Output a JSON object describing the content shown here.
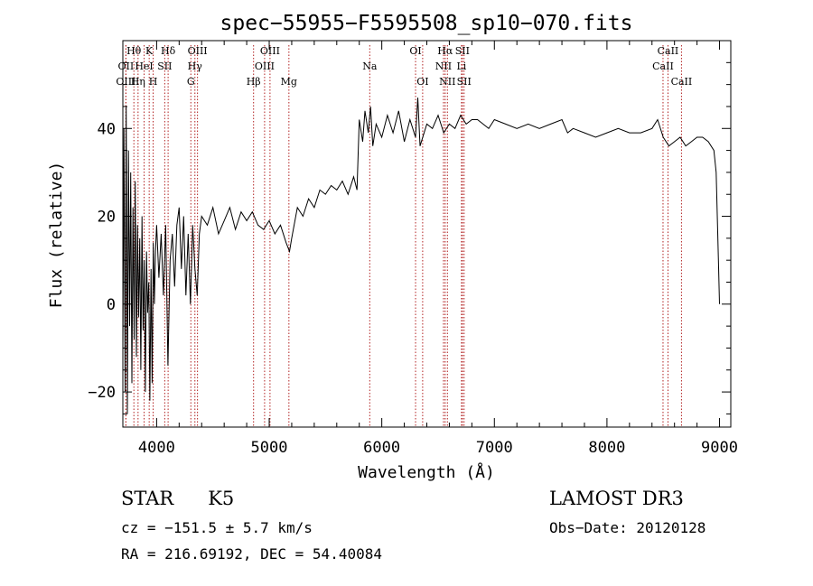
{
  "chart_data": {
    "type": "line",
    "title": "spec−55955−F5595508_sp10−070.fits",
    "xlabel": "Wavelength (Å)",
    "ylabel": "Flux (relative)",
    "xlim": [
      3700,
      9100
    ],
    "ylim": [
      -28,
      60
    ],
    "xticks": [
      4000,
      5000,
      6000,
      7000,
      8000,
      9000
    ],
    "yticks": [
      -20,
      0,
      20,
      40
    ],
    "ytick_labels": [
      "−20",
      "0",
      "20",
      "40"
    ],
    "series": [
      {
        "name": "flux",
        "points": [
          [
            3700,
            -10
          ],
          [
            3710,
            40
          ],
          [
            3720,
            -20
          ],
          [
            3730,
            45
          ],
          [
            3740,
            -25
          ],
          [
            3750,
            35
          ],
          [
            3760,
            -5
          ],
          [
            3770,
            30
          ],
          [
            3780,
            -18
          ],
          [
            3790,
            22
          ],
          [
            3800,
            -8
          ],
          [
            3810,
            28
          ],
          [
            3820,
            -12
          ],
          [
            3830,
            18
          ],
          [
            3840,
            -3
          ],
          [
            3850,
            15
          ],
          [
            3860,
            -15
          ],
          [
            3870,
            20
          ],
          [
            3880,
            -6
          ],
          [
            3890,
            10
          ],
          [
            3900,
            -20
          ],
          [
            3910,
            12
          ],
          [
            3920,
            -2
          ],
          [
            3930,
            5
          ],
          [
            3940,
            -22
          ],
          [
            3950,
            8
          ],
          [
            3960,
            -18
          ],
          [
            3970,
            14
          ],
          [
            3980,
            0
          ],
          [
            3990,
            12
          ],
          [
            4000,
            18
          ],
          [
            4020,
            6
          ],
          [
            4040,
            16
          ],
          [
            4060,
            2
          ],
          [
            4080,
            18
          ],
          [
            4100,
            -14
          ],
          [
            4120,
            10
          ],
          [
            4140,
            16
          ],
          [
            4160,
            4
          ],
          [
            4180,
            18
          ],
          [
            4200,
            22
          ],
          [
            4220,
            8
          ],
          [
            4240,
            20
          ],
          [
            4260,
            2
          ],
          [
            4280,
            16
          ],
          [
            4300,
            0
          ],
          [
            4320,
            18
          ],
          [
            4340,
            8
          ],
          [
            4360,
            2
          ],
          [
            4380,
            16
          ],
          [
            4400,
            20
          ],
          [
            4450,
            18
          ],
          [
            4500,
            22
          ],
          [
            4550,
            16
          ],
          [
            4600,
            19
          ],
          [
            4650,
            22
          ],
          [
            4700,
            17
          ],
          [
            4750,
            21
          ],
          [
            4800,
            19
          ],
          [
            4850,
            21
          ],
          [
            4900,
            18
          ],
          [
            4950,
            17
          ],
          [
            5000,
            19
          ],
          [
            5050,
            16
          ],
          [
            5100,
            18
          ],
          [
            5150,
            14
          ],
          [
            5180,
            12
          ],
          [
            5200,
            15
          ],
          [
            5250,
            22
          ],
          [
            5300,
            20
          ],
          [
            5350,
            24
          ],
          [
            5400,
            22
          ],
          [
            5450,
            26
          ],
          [
            5500,
            25
          ],
          [
            5550,
            27
          ],
          [
            5600,
            26
          ],
          [
            5650,
            28
          ],
          [
            5700,
            25
          ],
          [
            5750,
            29
          ],
          [
            5780,
            26
          ],
          [
            5800,
            42
          ],
          [
            5830,
            37
          ],
          [
            5850,
            44
          ],
          [
            5880,
            39
          ],
          [
            5900,
            45
          ],
          [
            5920,
            36
          ],
          [
            5950,
            41
          ],
          [
            6000,
            38
          ],
          [
            6050,
            43
          ],
          [
            6100,
            39
          ],
          [
            6150,
            44
          ],
          [
            6200,
            37
          ],
          [
            6250,
            42
          ],
          [
            6300,
            38
          ],
          [
            6320,
            47
          ],
          [
            6340,
            36
          ],
          [
            6400,
            41
          ],
          [
            6450,
            40
          ],
          [
            6500,
            43
          ],
          [
            6550,
            39
          ],
          [
            6600,
            41
          ],
          [
            6650,
            40
          ],
          [
            6700,
            43
          ],
          [
            6750,
            41
          ],
          [
            6800,
            42
          ],
          [
            6850,
            42
          ],
          [
            6900,
            41
          ],
          [
            6950,
            40
          ],
          [
            7000,
            42
          ],
          [
            7100,
            41
          ],
          [
            7200,
            40
          ],
          [
            7300,
            41
          ],
          [
            7400,
            40
          ],
          [
            7500,
            41
          ],
          [
            7600,
            42
          ],
          [
            7650,
            39
          ],
          [
            7700,
            40
          ],
          [
            7800,
            39
          ],
          [
            7900,
            38
          ],
          [
            8000,
            39
          ],
          [
            8100,
            40
          ],
          [
            8200,
            39
          ],
          [
            8300,
            39
          ],
          [
            8400,
            40
          ],
          [
            8450,
            42
          ],
          [
            8500,
            38
          ],
          [
            8550,
            36
          ],
          [
            8600,
            37
          ],
          [
            8650,
            38
          ],
          [
            8700,
            36
          ],
          [
            8750,
            37
          ],
          [
            8800,
            38
          ],
          [
            8850,
            38
          ],
          [
            8900,
            37
          ],
          [
            8950,
            35
          ],
          [
            8970,
            30
          ],
          [
            8990,
            10
          ],
          [
            9000,
            0
          ]
        ]
      }
    ],
    "lines": [
      {
        "label": "Hθ",
        "x": 3798,
        "row": 1
      },
      {
        "label": "OII",
        "x": 3727,
        "row": 2
      },
      {
        "label": "OIII",
        "x": 3727,
        "row": 3
      },
      {
        "label": "K",
        "x": 3934,
        "row": 1
      },
      {
        "label": "HeI",
        "x": 3889,
        "row": 2
      },
      {
        "label": "Hη",
        "x": 3835,
        "row": 3
      },
      {
        "label": "Hδ",
        "x": 4102,
        "row": 1
      },
      {
        "label": "SII",
        "x": 4072,
        "row": 2
      },
      {
        "label": "H",
        "x": 3969,
        "row": 3
      },
      {
        "label": "OIII",
        "x": 4363,
        "row": 1
      },
      {
        "label": "Hγ",
        "x": 4340,
        "row": 2
      },
      {
        "label": "G",
        "x": 4304,
        "row": 3
      },
      {
        "label": "OIII",
        "x": 5007,
        "row": 1
      },
      {
        "label": "OIII",
        "x": 4959,
        "row": 2
      },
      {
        "label": "Hβ",
        "x": 4861,
        "row": 3
      },
      {
        "label": "Mg",
        "x": 5175,
        "row": 3
      },
      {
        "label": "Na",
        "x": 5893,
        "row": 2
      },
      {
        "label": "OI",
        "x": 6300,
        "row": 1
      },
      {
        "label": "OI",
        "x": 6363,
        "row": 3
      },
      {
        "label": "Hα",
        "x": 6563,
        "row": 1
      },
      {
        "label": "SII",
        "x": 6716,
        "row": 1
      },
      {
        "label": "NII",
        "x": 6548,
        "row": 2
      },
      {
        "label": "Li",
        "x": 6708,
        "row": 2
      },
      {
        "label": "NII",
        "x": 6583,
        "row": 3
      },
      {
        "label": "SII",
        "x": 6731,
        "row": 3
      },
      {
        "label": "CaII",
        "x": 8542,
        "row": 1
      },
      {
        "label": "CaII",
        "x": 8498,
        "row": 2
      },
      {
        "label": "CaII",
        "x": 8662,
        "row": 3
      }
    ]
  },
  "info": {
    "class": "STAR",
    "subclass": "K5",
    "survey": "LAMOST DR3",
    "cz": "cz = −151.5 ± 5.7 km/s",
    "obs_date": "Obs−Date: 20120128",
    "radec": "RA = 216.69192, DEC =  54.40084"
  }
}
